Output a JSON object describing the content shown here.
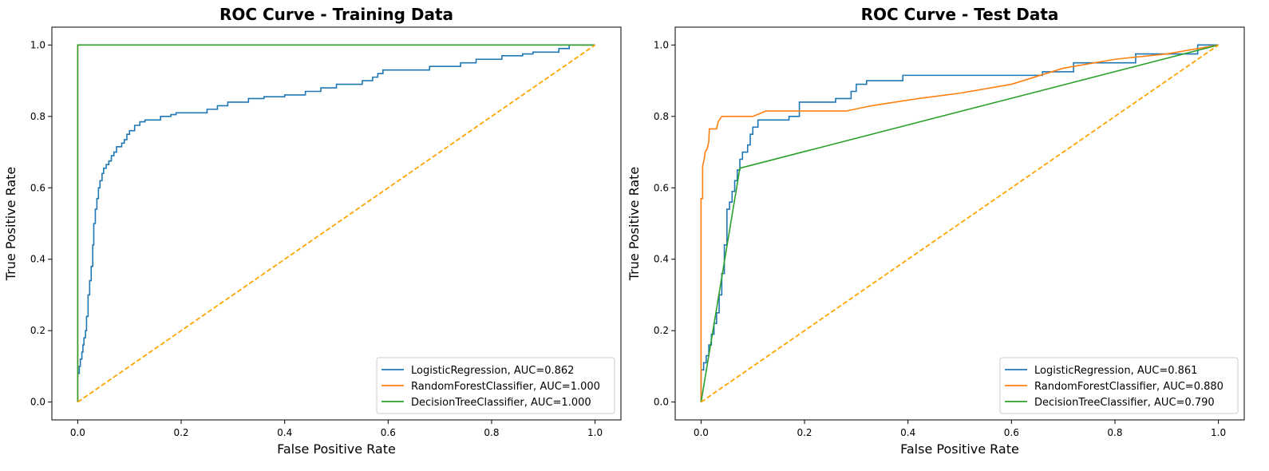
{
  "chart_data": [
    {
      "type": "line",
      "title": "ROC Curve - Training Data",
      "xlabel": "False Positive Rate",
      "ylabel": "True Positive Rate",
      "xlim": [
        -0.05,
        1.05
      ],
      "ylim": [
        -0.05,
        1.05
      ],
      "xticks": [
        "0.0",
        "0.2",
        "0.4",
        "0.6",
        "0.8",
        "1.0"
      ],
      "yticks": [
        "0.0",
        "0.2",
        "0.4",
        "0.6",
        "0.8",
        "1.0"
      ],
      "grid": false,
      "legend_position": "bottom-right",
      "diagonal": {
        "color": "#ffa500",
        "style": "dashed",
        "points": [
          [
            0,
            0
          ],
          [
            1,
            1
          ]
        ]
      },
      "series": [
        {
          "name": "LogisticRegression, AUC=0.862",
          "color": "#1f77b4",
          "step": true,
          "points": [
            [
              0,
              0.07
            ],
            [
              0,
              0.08
            ],
            [
              0.003,
              0.08
            ],
            [
              0.003,
              0.1
            ],
            [
              0.005,
              0.1
            ],
            [
              0.005,
              0.12
            ],
            [
              0.008,
              0.12
            ],
            [
              0.008,
              0.14
            ],
            [
              0.01,
              0.14
            ],
            [
              0.01,
              0.16
            ],
            [
              0.012,
              0.16
            ],
            [
              0.012,
              0.18
            ],
            [
              0.015,
              0.18
            ],
            [
              0.015,
              0.2
            ],
            [
              0.017,
              0.2
            ],
            [
              0.017,
              0.24
            ],
            [
              0.02,
              0.24
            ],
            [
              0.02,
              0.3
            ],
            [
              0.023,
              0.3
            ],
            [
              0.023,
              0.34
            ],
            [
              0.026,
              0.34
            ],
            [
              0.026,
              0.38
            ],
            [
              0.029,
              0.38
            ],
            [
              0.029,
              0.44
            ],
            [
              0.031,
              0.44
            ],
            [
              0.031,
              0.5
            ],
            [
              0.034,
              0.5
            ],
            [
              0.034,
              0.54
            ],
            [
              0.037,
              0.54
            ],
            [
              0.037,
              0.57
            ],
            [
              0.04,
              0.57
            ],
            [
              0.04,
              0.6
            ],
            [
              0.043,
              0.6
            ],
            [
              0.043,
              0.62
            ],
            [
              0.047,
              0.62
            ],
            [
              0.047,
              0.64
            ],
            [
              0.05,
              0.64
            ],
            [
              0.05,
              0.655
            ],
            [
              0.055,
              0.655
            ],
            [
              0.055,
              0.665
            ],
            [
              0.06,
              0.665
            ],
            [
              0.06,
              0.675
            ],
            [
              0.065,
              0.675
            ],
            [
              0.065,
              0.69
            ],
            [
              0.07,
              0.69
            ],
            [
              0.07,
              0.7
            ],
            [
              0.075,
              0.7
            ],
            [
              0.075,
              0.715
            ],
            [
              0.085,
              0.715
            ],
            [
              0.085,
              0.725
            ],
            [
              0.09,
              0.725
            ],
            [
              0.09,
              0.735
            ],
            [
              0.095,
              0.735
            ],
            [
              0.095,
              0.75
            ],
            [
              0.1,
              0.75
            ],
            [
              0.1,
              0.76
            ],
            [
              0.11,
              0.76
            ],
            [
              0.11,
              0.775
            ],
            [
              0.12,
              0.775
            ],
            [
              0.12,
              0.785
            ],
            [
              0.13,
              0.785
            ],
            [
              0.13,
              0.79
            ],
            [
              0.16,
              0.79
            ],
            [
              0.16,
              0.8
            ],
            [
              0.18,
              0.8
            ],
            [
              0.18,
              0.805
            ],
            [
              0.19,
              0.805
            ],
            [
              0.19,
              0.81
            ],
            [
              0.25,
              0.81
            ],
            [
              0.25,
              0.82
            ],
            [
              0.27,
              0.82
            ],
            [
              0.27,
              0.83
            ],
            [
              0.29,
              0.83
            ],
            [
              0.29,
              0.84
            ],
            [
              0.33,
              0.84
            ],
            [
              0.33,
              0.85
            ],
            [
              0.36,
              0.85
            ],
            [
              0.36,
              0.855
            ],
            [
              0.4,
              0.855
            ],
            [
              0.4,
              0.86
            ],
            [
              0.44,
              0.86
            ],
            [
              0.44,
              0.87
            ],
            [
              0.47,
              0.87
            ],
            [
              0.47,
              0.88
            ],
            [
              0.5,
              0.88
            ],
            [
              0.5,
              0.89
            ],
            [
              0.55,
              0.89
            ],
            [
              0.55,
              0.9
            ],
            [
              0.57,
              0.9
            ],
            [
              0.57,
              0.91
            ],
            [
              0.58,
              0.91
            ],
            [
              0.58,
              0.92
            ],
            [
              0.59,
              0.92
            ],
            [
              0.59,
              0.93
            ],
            [
              0.68,
              0.93
            ],
            [
              0.68,
              0.94
            ],
            [
              0.74,
              0.94
            ],
            [
              0.74,
              0.95
            ],
            [
              0.77,
              0.95
            ],
            [
              0.77,
              0.96
            ],
            [
              0.82,
              0.96
            ],
            [
              0.82,
              0.97
            ],
            [
              0.86,
              0.97
            ],
            [
              0.86,
              0.975
            ],
            [
              0.88,
              0.975
            ],
            [
              0.88,
              0.98
            ],
            [
              0.93,
              0.98
            ],
            [
              0.93,
              0.99
            ],
            [
              0.95,
              0.99
            ],
            [
              0.95,
              1.0
            ],
            [
              1.0,
              1.0
            ]
          ]
        },
        {
          "name": "RandomForestClassifier, AUC=1.000",
          "color": "#ff7f0e",
          "step": false,
          "points": [
            [
              0,
              0
            ],
            [
              0,
              1
            ],
            [
              1,
              1
            ]
          ]
        },
        {
          "name": "DecisionTreeClassifier, AUC=1.000",
          "color": "#2ca02c",
          "step": false,
          "points": [
            [
              0,
              0
            ],
            [
              0,
              1
            ],
            [
              1,
              1
            ]
          ]
        }
      ]
    },
    {
      "type": "line",
      "title": "ROC Curve - Test Data",
      "xlabel": "False Positive Rate",
      "ylabel": "True Positive Rate",
      "xlim": [
        -0.05,
        1.05
      ],
      "ylim": [
        -0.05,
        1.05
      ],
      "xticks": [
        "0.0",
        "0.2",
        "0.4",
        "0.6",
        "0.8",
        "1.0"
      ],
      "yticks": [
        "0.0",
        "0.2",
        "0.4",
        "0.6",
        "0.8",
        "1.0"
      ],
      "grid": false,
      "legend_position": "bottom-right",
      "diagonal": {
        "color": "#ffa500",
        "style": "dashed",
        "points": [
          [
            0,
            0
          ],
          [
            1,
            1
          ]
        ]
      },
      "series": [
        {
          "name": "LogisticRegression, AUC=0.861",
          "color": "#1f77b4",
          "step": true,
          "points": [
            [
              0,
              0
            ],
            [
              0,
              0.09
            ],
            [
              0.005,
              0.09
            ],
            [
              0.005,
              0.11
            ],
            [
              0.01,
              0.11
            ],
            [
              0.01,
              0.13
            ],
            [
              0.015,
              0.13
            ],
            [
              0.015,
              0.16
            ],
            [
              0.02,
              0.16
            ],
            [
              0.02,
              0.19
            ],
            [
              0.025,
              0.19
            ],
            [
              0.025,
              0.22
            ],
            [
              0.03,
              0.22
            ],
            [
              0.03,
              0.25
            ],
            [
              0.035,
              0.25
            ],
            [
              0.035,
              0.3
            ],
            [
              0.04,
              0.3
            ],
            [
              0.04,
              0.36
            ],
            [
              0.045,
              0.36
            ],
            [
              0.045,
              0.44
            ],
            [
              0.05,
              0.44
            ],
            [
              0.05,
              0.54
            ],
            [
              0.055,
              0.54
            ],
            [
              0.055,
              0.56
            ],
            [
              0.06,
              0.56
            ],
            [
              0.06,
              0.59
            ],
            [
              0.065,
              0.59
            ],
            [
              0.065,
              0.62
            ],
            [
              0.07,
              0.62
            ],
            [
              0.07,
              0.65
            ],
            [
              0.075,
              0.65
            ],
            [
              0.075,
              0.68
            ],
            [
              0.08,
              0.68
            ],
            [
              0.08,
              0.7
            ],
            [
              0.09,
              0.7
            ],
            [
              0.09,
              0.72
            ],
            [
              0.095,
              0.72
            ],
            [
              0.095,
              0.75
            ],
            [
              0.1,
              0.75
            ],
            [
              0.1,
              0.77
            ],
            [
              0.11,
              0.77
            ],
            [
              0.11,
              0.79
            ],
            [
              0.17,
              0.79
            ],
            [
              0.17,
              0.8
            ],
            [
              0.19,
              0.8
            ],
            [
              0.19,
              0.84
            ],
            [
              0.26,
              0.84
            ],
            [
              0.26,
              0.85
            ],
            [
              0.29,
              0.85
            ],
            [
              0.29,
              0.87
            ],
            [
              0.3,
              0.87
            ],
            [
              0.3,
              0.89
            ],
            [
              0.32,
              0.89
            ],
            [
              0.32,
              0.9
            ],
            [
              0.39,
              0.9
            ],
            [
              0.39,
              0.915
            ],
            [
              0.66,
              0.915
            ],
            [
              0.66,
              0.925
            ],
            [
              0.72,
              0.925
            ],
            [
              0.72,
              0.95
            ],
            [
              0.84,
              0.95
            ],
            [
              0.84,
              0.975
            ],
            [
              0.96,
              0.975
            ],
            [
              0.96,
              1.0
            ],
            [
              1.0,
              1.0
            ]
          ]
        },
        {
          "name": "RandomForestClassifier, AUC=0.880",
          "color": "#ff7f0e",
          "step": false,
          "points": [
            [
              0,
              0
            ],
            [
              0,
              0.57
            ],
            [
              0.003,
              0.57
            ],
            [
              0.003,
              0.66
            ],
            [
              0.006,
              0.68
            ],
            [
              0.008,
              0.7
            ],
            [
              0.012,
              0.71
            ],
            [
              0.015,
              0.73
            ],
            [
              0.016,
              0.765
            ],
            [
              0.03,
              0.765
            ],
            [
              0.033,
              0.785
            ],
            [
              0.04,
              0.8
            ],
            [
              0.1,
              0.8
            ],
            [
              0.125,
              0.815
            ],
            [
              0.28,
              0.815
            ],
            [
              0.33,
              0.83
            ],
            [
              0.42,
              0.85
            ],
            [
              0.5,
              0.865
            ],
            [
              0.6,
              0.89
            ],
            [
              0.7,
              0.935
            ],
            [
              0.8,
              0.96
            ],
            [
              0.9,
              0.975
            ],
            [
              1.0,
              1.0
            ]
          ]
        },
        {
          "name": "DecisionTreeClassifier, AUC=0.790",
          "color": "#2ca02c",
          "step": false,
          "points": [
            [
              0,
              0
            ],
            [
              0.075,
              0.655
            ],
            [
              1,
              1
            ]
          ]
        }
      ]
    }
  ]
}
